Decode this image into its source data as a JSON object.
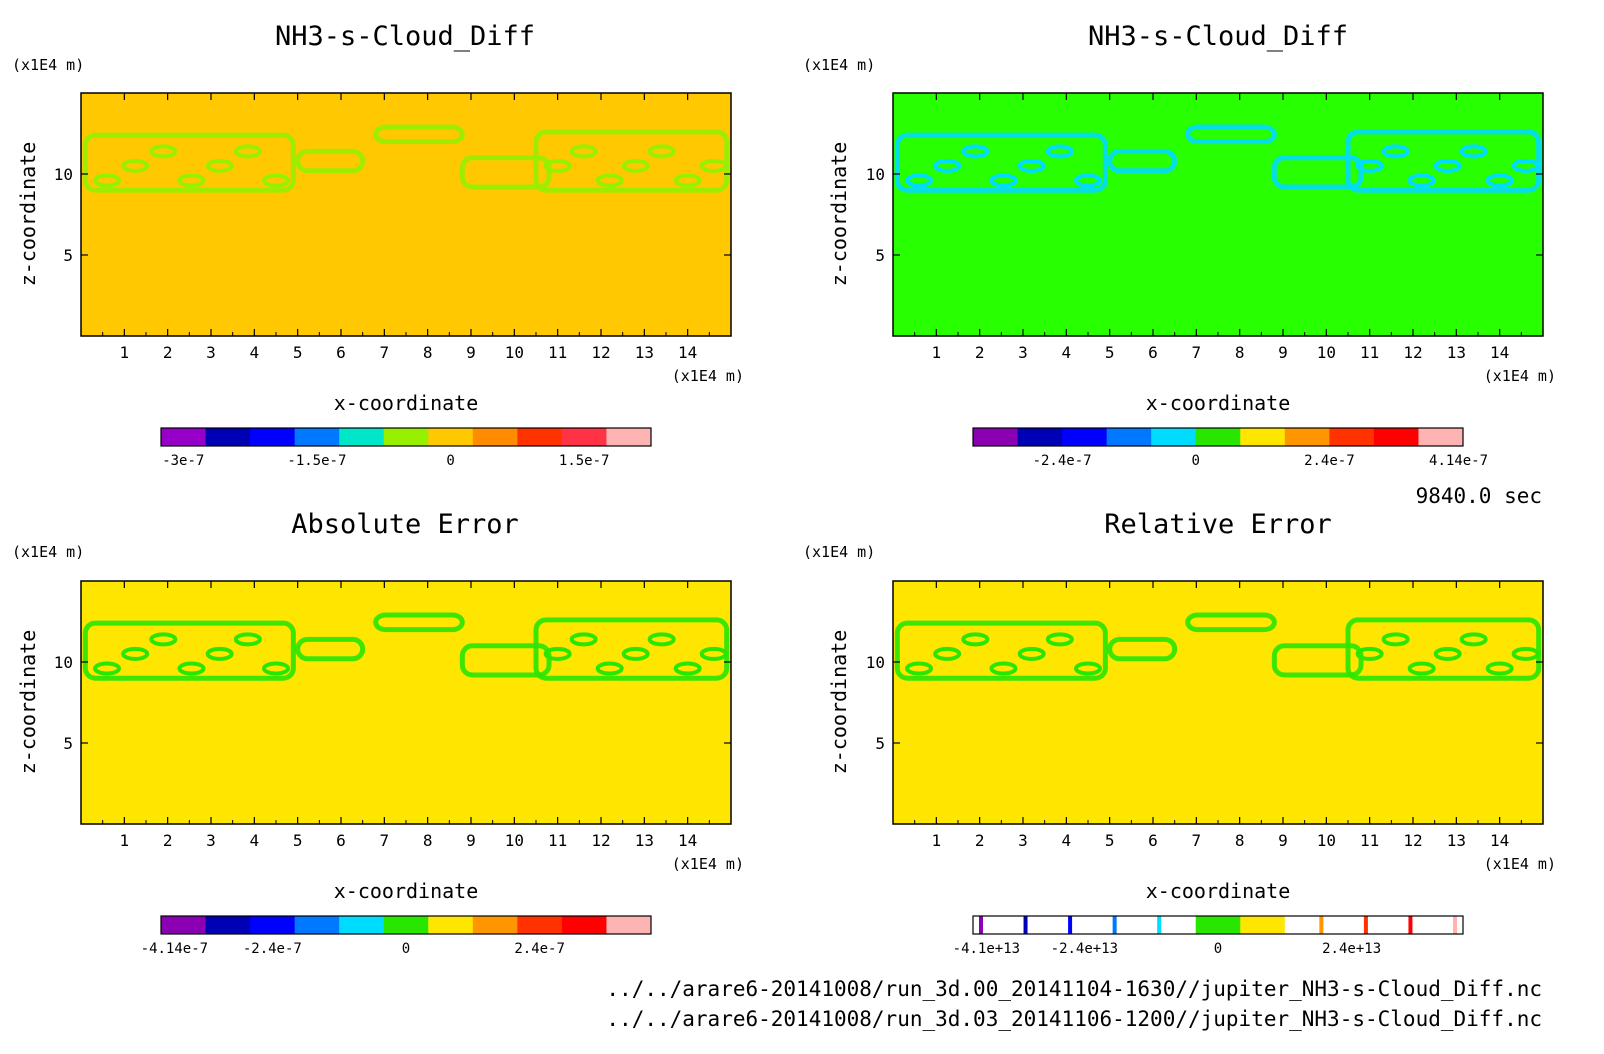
{
  "chart_data": [
    {
      "type": "heatmap",
      "title": "NH3-s-Cloud_Diff",
      "xlabel": "x-coordinate",
      "ylabel": "z-coordinate",
      "x_unit": "(x1E4 m)",
      "y_unit": "(x1E4 m)",
      "x_ticks": [
        "1",
        "2",
        "3",
        "4",
        "5",
        "6",
        "7",
        "8",
        "9",
        "10",
        "11",
        "12",
        "13",
        "14"
      ],
      "y_ticks": [
        "5",
        "10"
      ],
      "xlim": [
        0,
        15
      ],
      "ylim": [
        0,
        15
      ],
      "background_color": "#ffc800",
      "pattern_color": "#96f000",
      "colorbar": {
        "colors": [
          "#9600c8",
          "#0000b4",
          "#0000ff",
          "#0078ff",
          "#00e6c8",
          "#96f000",
          "#ffc800",
          "#ff8c00",
          "#ff3200",
          "#ff3246",
          "#ffb4b4"
        ],
        "labels": [
          "-3e-7",
          "-1.5e-7",
          "0",
          "1.5e-7"
        ]
      }
    },
    {
      "type": "heatmap",
      "title": "NH3-s-Cloud_Diff",
      "xlabel": "x-coordinate",
      "ylabel": "z-coordinate",
      "x_unit": "(x1E4 m)",
      "y_unit": "(x1E4 m)",
      "x_ticks": [
        "1",
        "2",
        "3",
        "4",
        "5",
        "6",
        "7",
        "8",
        "9",
        "10",
        "11",
        "12",
        "13",
        "14"
      ],
      "y_ticks": [
        "5",
        "10"
      ],
      "xlim": [
        0,
        15
      ],
      "ylim": [
        0,
        15
      ],
      "background_color": "#28ff00",
      "pattern_color": "#00dcff",
      "colorbar": {
        "colors": [
          "#8c00b4",
          "#0000b4",
          "#0000ff",
          "#0078ff",
          "#00dcff",
          "#28e600",
          "#ffe600",
          "#ff9600",
          "#ff3200",
          "#ff0000",
          "#ffb4b4"
        ],
        "labels": [
          "-2.4e-7",
          "0",
          "2.4e-7",
          "4.14e-7"
        ]
      }
    },
    {
      "type": "heatmap",
      "title": "Absolute Error",
      "xlabel": "x-coordinate",
      "ylabel": "z-coordinate",
      "x_unit": "(x1E4 m)",
      "y_unit": "(x1E4 m)",
      "x_ticks": [
        "1",
        "2",
        "3",
        "4",
        "5",
        "6",
        "7",
        "8",
        "9",
        "10",
        "11",
        "12",
        "13",
        "14"
      ],
      "y_ticks": [
        "5",
        "10"
      ],
      "xlim": [
        0,
        15
      ],
      "ylim": [
        0,
        15
      ],
      "background_color": "#ffe600",
      "pattern_color": "#28e600",
      "colorbar": {
        "colors": [
          "#8c00b4",
          "#0000b4",
          "#0000ff",
          "#0078ff",
          "#00dcff",
          "#28e600",
          "#ffe600",
          "#ff9600",
          "#ff3200",
          "#ff0000",
          "#ffb4b4"
        ],
        "labels": [
          "-4.14e-7",
          "-2.4e-7",
          "0",
          "2.4e-7"
        ]
      }
    },
    {
      "type": "heatmap",
      "title": "Relative Error",
      "xlabel": "x-coordinate",
      "ylabel": "z-coordinate",
      "x_unit": "(x1E4 m)",
      "y_unit": "(x1E4 m)",
      "x_ticks": [
        "1",
        "2",
        "3",
        "4",
        "5",
        "6",
        "7",
        "8",
        "9",
        "10",
        "11",
        "12",
        "13",
        "14"
      ],
      "y_ticks": [
        "5",
        "10"
      ],
      "xlim": [
        0,
        15
      ],
      "ylim": [
        0,
        15
      ],
      "background_color": "#ffe600",
      "pattern_color": "#28e600",
      "colorbar": {
        "colors": [
          "#8c00b4",
          "#0000b4",
          "#0000ff",
          "#0078ff",
          "#00dcff",
          "#28e600",
          "#ffe600",
          "#ff9600",
          "#ff3200",
          "#ff0000",
          "#ffb4b4"
        ],
        "labels": [
          "-4.1e+13",
          "-2.4e+13",
          "0",
          "2.4e+13"
        ]
      }
    }
  ],
  "time_label": "9840.0 sec",
  "file_paths": [
    "../../arare6-20141008/run_3d.00_20141104-1630//jupiter_NH3-s-Cloud_Diff.nc",
    "../../arare6-20141008/run_3d.03_20141106-1200//jupiter_NH3-s-Cloud_Diff.nc"
  ]
}
